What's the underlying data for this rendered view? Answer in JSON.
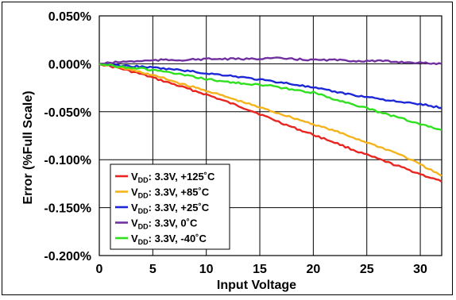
{
  "chart_data": {
    "type": "line",
    "title": "",
    "xlabel": "Input Voltage",
    "ylabel": "Error (%Full Scale)",
    "xlim": [
      0,
      32
    ],
    "ylim": [
      -0.2,
      0.05
    ],
    "x_ticks": [
      0,
      5,
      10,
      15,
      20,
      25,
      30
    ],
    "x_tick_labels": [
      "0",
      "5",
      "10",
      "15",
      "20",
      "25",
      "30"
    ],
    "y_ticks": [
      0.05,
      0,
      -0.05,
      -0.1,
      -0.15,
      -0.2
    ],
    "y_tick_labels": [
      "0.050%",
      "0.000%",
      "-0.050%",
      "-0.100%",
      "-0.150%",
      "-0.200%"
    ],
    "grid": true,
    "legend_position": "bottom-left",
    "series": [
      {
        "name": "VDD: 3.3V, +125˚C",
        "color": "#e8251f",
        "x": [
          0,
          2,
          4,
          6,
          8,
          10,
          12,
          14,
          16,
          18,
          20,
          22,
          24,
          26,
          28,
          30,
          32
        ],
        "y": [
          0,
          -0.005,
          -0.011,
          -0.018,
          -0.025,
          -0.032,
          -0.04,
          -0.048,
          -0.057,
          -0.066,
          -0.074,
          -0.082,
          -0.091,
          -0.099,
          -0.107,
          -0.115,
          -0.123
        ]
      },
      {
        "name": "VDD: 3.3V, +85˚C",
        "color": "#f5b31b",
        "x": [
          0,
          2,
          4,
          6,
          8,
          10,
          12,
          14,
          16,
          18,
          20,
          22,
          24,
          26,
          28,
          30,
          32
        ],
        "y": [
          0,
          -0.004,
          -0.009,
          -0.015,
          -0.022,
          -0.028,
          -0.035,
          -0.042,
          -0.049,
          -0.056,
          -0.063,
          -0.07,
          -0.078,
          -0.086,
          -0.094,
          -0.105,
          -0.117
        ]
      },
      {
        "name": "VDD: 3.3V, +25˚C",
        "color": "#1d27d6",
        "x": [
          0,
          2,
          4,
          6,
          8,
          10,
          12,
          14,
          16,
          18,
          20,
          22,
          24,
          26,
          28,
          30,
          32
        ],
        "y": [
          0,
          -0.002,
          -0.003,
          -0.005,
          -0.007,
          -0.01,
          -0.012,
          -0.015,
          -0.018,
          -0.021,
          -0.025,
          -0.029,
          -0.033,
          -0.036,
          -0.04,
          -0.042,
          -0.046
        ]
      },
      {
        "name": "VDD: 3.3V, 0˚C",
        "color": "#7030a0",
        "x": [
          0,
          2,
          4,
          6,
          8,
          10,
          12,
          14,
          16,
          18,
          20,
          22,
          24,
          26,
          28,
          30,
          32
        ],
        "y": [
          0,
          0.002,
          0.003,
          0.004,
          0.004,
          0.005,
          0.005,
          0.005,
          0.006,
          0.005,
          0.004,
          0.004,
          0.003,
          0.003,
          0.002,
          0.001,
          0
        ]
      },
      {
        "name": "VDD: 3.3V, -40˚C",
        "color": "#2ee01e",
        "x": [
          0,
          2,
          4,
          6,
          8,
          10,
          12,
          14,
          16,
          18,
          20,
          22,
          24,
          26,
          28,
          30,
          32
        ],
        "y": [
          0,
          -0.003,
          -0.005,
          -0.008,
          -0.012,
          -0.016,
          -0.019,
          -0.021,
          -0.023,
          -0.027,
          -0.03,
          -0.037,
          -0.043,
          -0.05,
          -0.056,
          -0.063,
          -0.069
        ]
      }
    ],
    "legend": [
      {
        "pre": "V",
        "sub": "DD",
        "rest": ": 3.3V, +125˚C",
        "color": "#e8251f"
      },
      {
        "pre": "V",
        "sub": "DD",
        "rest": ": 3.3V, +85˚C",
        "color": "#f5b31b"
      },
      {
        "pre": "V",
        "sub": "DD",
        "rest": ": 3.3V, +25˚C",
        "color": "#1d27d6"
      },
      {
        "pre": "V",
        "sub": "DD",
        "rest": ": 3.3V, 0˚C",
        "color": "#7030a0"
      },
      {
        "pre": "V",
        "sub": "DD",
        "rest": ": 3.3V, -40˚C",
        "color": "#2ee01e"
      }
    ]
  }
}
